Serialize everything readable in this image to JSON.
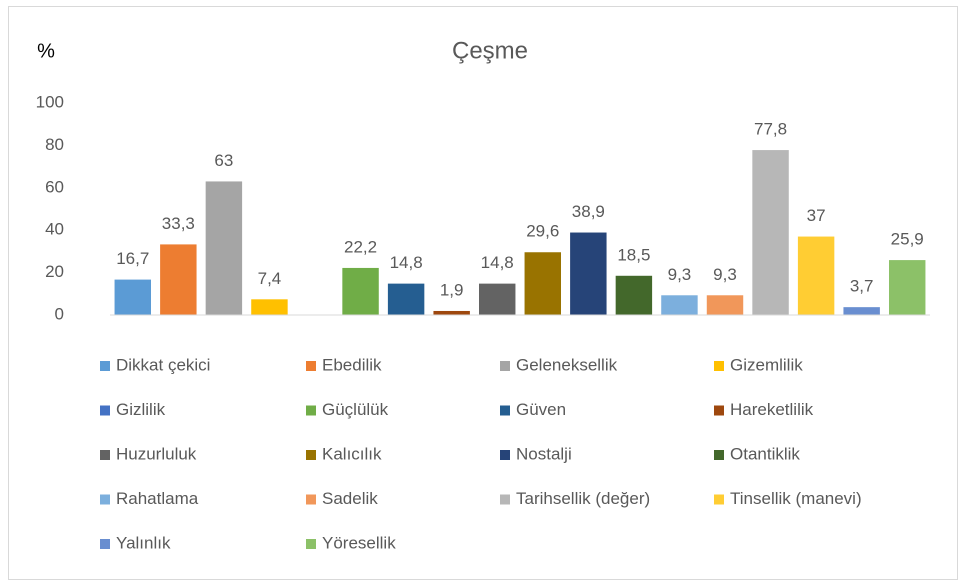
{
  "chart_data": {
    "type": "bar",
    "title": "Çeşme",
    "y_label": "%",
    "ylim": [
      0,
      100
    ],
    "yticks": [
      0,
      20,
      40,
      60,
      80,
      100
    ],
    "grid": false,
    "legend": "bottom",
    "series": [
      {
        "name": "Dikkat çekici",
        "color": "#5b9bd5",
        "values": [
          16.7
        ],
        "value_labels": [
          "16,7"
        ]
      },
      {
        "name": "Ebedilik",
        "color": "#ed7d31",
        "values": [
          33.3
        ],
        "value_labels": [
          "33,3"
        ]
      },
      {
        "name": "Geleneksellik",
        "color": "#a5a5a5",
        "values": [
          63
        ]
      },
      {
        "name": "Gizemlilik",
        "color": "#ffc000",
        "values": [
          7.4
        ],
        "value_labels": [
          "7,4"
        ]
      },
      {
        "name": "Gizlilik",
        "color": "#4472c4",
        "values": [
          null
        ]
      },
      {
        "name": "Güçlülük",
        "color": "#70ad47",
        "values": [
          22.2
        ],
        "value_labels": [
          "22,2"
        ]
      },
      {
        "name": "Güven",
        "color": "#255e91",
        "values": [
          14.8
        ],
        "value_labels": [
          "14,8"
        ]
      },
      {
        "name": "Hareketlilik",
        "color": "#9e480e",
        "values": [
          1.9
        ],
        "value_labels": [
          "1,9"
        ]
      },
      {
        "name": "Huzurluluk",
        "color": "#636363",
        "values": [
          14.8
        ],
        "value_labels": [
          "14,8"
        ]
      },
      {
        "name": "Kalıcılık",
        "color": "#997300",
        "values": [
          29.6
        ],
        "value_labels": [
          "29,6"
        ]
      },
      {
        "name": "Nostalji",
        "color": "#264478",
        "values": [
          38.9
        ],
        "value_labels": [
          "38,9"
        ]
      },
      {
        "name": "Otantiklik",
        "color": "#43682b",
        "values": [
          18.5
        ],
        "value_labels": [
          "18,5"
        ]
      },
      {
        "name": "Rahatlama",
        "color": "#7cafdd",
        "values": [
          9.3
        ],
        "value_labels": [
          "9,3"
        ]
      },
      {
        "name": "Sadelik",
        "color": "#f1975a",
        "values": [
          9.3
        ],
        "value_labels": [
          "9,3"
        ]
      },
      {
        "name": "Tarihsellik (değer)",
        "color": "#b7b7b7",
        "values": [
          77.8
        ],
        "value_labels": [
          "77,8"
        ]
      },
      {
        "name": "Tinsellik (manevi)",
        "color": "#ffcd33",
        "values": [
          37
        ]
      },
      {
        "name": "Yalınlık",
        "color": "#698ed0",
        "values": [
          3.7
        ],
        "value_labels": [
          "3,7"
        ]
      },
      {
        "name": "Yöresellik",
        "color": "#8cc168",
        "values": [
          25.9
        ],
        "value_labels": [
          "25,9"
        ]
      }
    ]
  }
}
